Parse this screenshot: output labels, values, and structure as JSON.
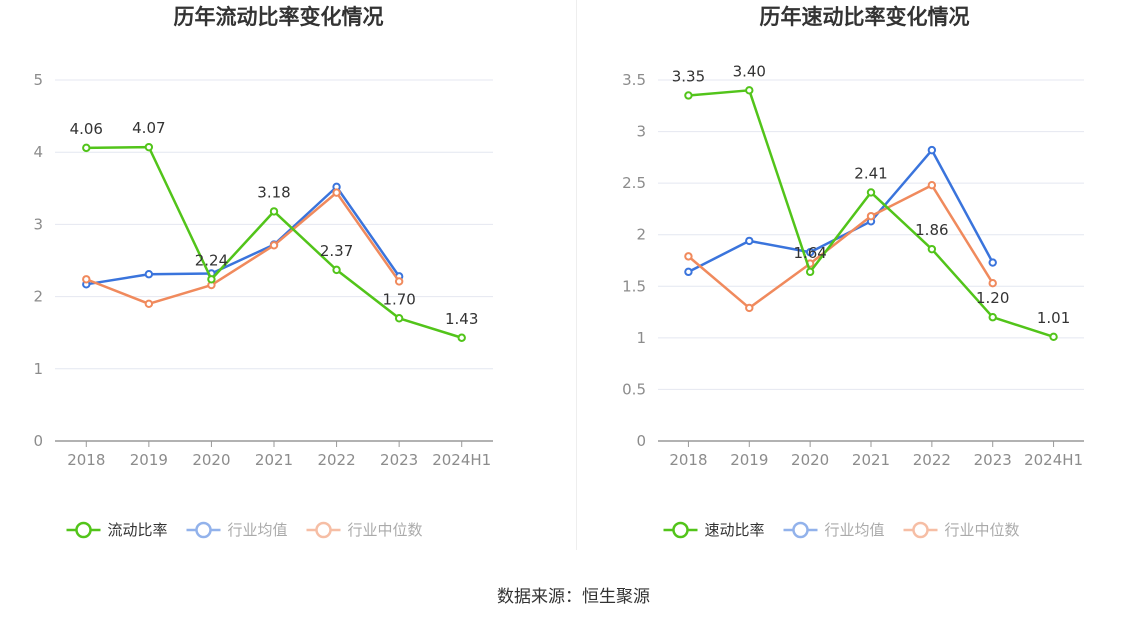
{
  "colors": {
    "green": "#52c41a",
    "blue": "#3a74dc",
    "orange": "#f08a5d",
    "axis": "#999999",
    "grid": "#e4e7f0",
    "tick_label": "#8c8c8c",
    "title": "#333333",
    "data_label": "#333333"
  },
  "source_text": "数据来源：恒生聚源",
  "chart_data": [
    {
      "type": "line",
      "title": "历年流动比率变化情况",
      "categories": [
        "2018",
        "2019",
        "2020",
        "2021",
        "2022",
        "2023",
        "2024H1"
      ],
      "ylim": [
        0,
        5
      ],
      "yticks": [
        "0",
        "1",
        "2",
        "3",
        "4",
        "5"
      ],
      "grid": true,
      "legend_position": "bottom",
      "series": [
        {
          "name": "流动比率",
          "color_key": "green",
          "values": [
            4.06,
            4.07,
            2.24,
            3.18,
            2.37,
            1.7,
            1.43
          ],
          "labels": [
            "4.06",
            "4.07",
            "2.24",
            "3.18",
            "2.37",
            "1.70",
            "1.43"
          ]
        },
        {
          "name": "行业均值",
          "color_key": "blue",
          "values": [
            2.17,
            2.31,
            2.32,
            2.72,
            3.52,
            2.28,
            null
          ]
        },
        {
          "name": "行业中位数",
          "color_key": "orange",
          "values": [
            2.24,
            1.9,
            2.16,
            2.71,
            3.44,
            2.21,
            null
          ]
        }
      ]
    },
    {
      "type": "line",
      "title": "历年速动比率变化情况",
      "categories": [
        "2018",
        "2019",
        "2020",
        "2021",
        "2022",
        "2023",
        "2024H1"
      ],
      "ylim": [
        0,
        3.5
      ],
      "yticks": [
        "0",
        "0.5",
        "1",
        "1.5",
        "2",
        "2.5",
        "3",
        "3.5"
      ],
      "grid": true,
      "legend_position": "bottom",
      "series": [
        {
          "name": "速动比率",
          "color_key": "green",
          "values": [
            3.35,
            3.4,
            1.64,
            2.41,
            1.86,
            1.2,
            1.01
          ],
          "labels": [
            "3.35",
            "3.40",
            "1.64",
            "2.41",
            "1.86",
            "1.20",
            "1.01"
          ]
        },
        {
          "name": "行业均值",
          "color_key": "blue",
          "values": [
            1.64,
            1.94,
            1.83,
            2.13,
            2.82,
            1.73,
            null
          ]
        },
        {
          "name": "行业中位数",
          "color_key": "orange",
          "values": [
            1.79,
            1.29,
            1.72,
            2.18,
            2.48,
            1.53,
            null
          ]
        }
      ]
    }
  ]
}
